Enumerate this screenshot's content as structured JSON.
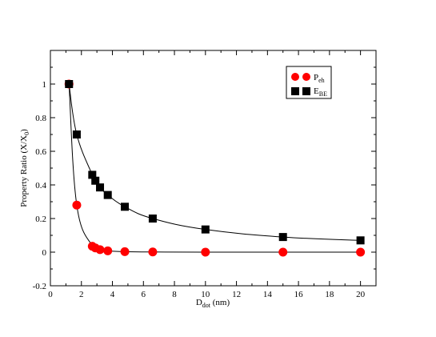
{
  "chart_data": {
    "type": "scatter",
    "xlim": [
      0,
      21
    ],
    "ylim": [
      -0.2,
      1.2
    ],
    "x_ticks": [
      "0",
      "2",
      "4",
      "6",
      "8",
      "10",
      "12",
      "14",
      "16",
      "18",
      "20"
    ],
    "y_ticks": [
      "-0.2",
      "0",
      "0.2",
      "0.4",
      "0.6",
      "0.8",
      "1"
    ],
    "x_tick_values": [
      0,
      2,
      4,
      6,
      8,
      10,
      12,
      14,
      16,
      18,
      20
    ],
    "y_tick_values": [
      -0.2,
      0,
      0.2,
      0.4,
      0.6,
      0.8,
      1.0
    ],
    "xlabel": {
      "main": "D",
      "sub": "dot",
      "rest": " (nm)"
    },
    "ylabel": {
      "main": "Property Ratio (X/X",
      "sub": "0",
      "rest": ")"
    },
    "grid": false,
    "legend_position": "top-right",
    "series": [
      {
        "name": {
          "main": "P",
          "sub": "eh"
        },
        "marker": "circle",
        "color": "#ff0000",
        "x": [
          1.2,
          1.7,
          2.7,
          2.9,
          3.2,
          3.7,
          4.8,
          6.6,
          10,
          15,
          20
        ],
        "y": [
          1.0,
          0.28,
          0.035,
          0.025,
          0.015,
          0.008,
          0.003,
          0.001,
          0.0,
          0.0,
          0.0
        ]
      },
      {
        "name": {
          "main": "E",
          "sub": "BE"
        },
        "marker": "square",
        "color": "#000000",
        "x": [
          1.2,
          1.7,
          2.7,
          2.9,
          3.2,
          3.7,
          4.8,
          6.6,
          10,
          15,
          20
        ],
        "y": [
          1.0,
          0.7,
          0.46,
          0.425,
          0.385,
          0.34,
          0.27,
          0.2,
          0.135,
          0.09,
          0.07
        ]
      }
    ]
  }
}
